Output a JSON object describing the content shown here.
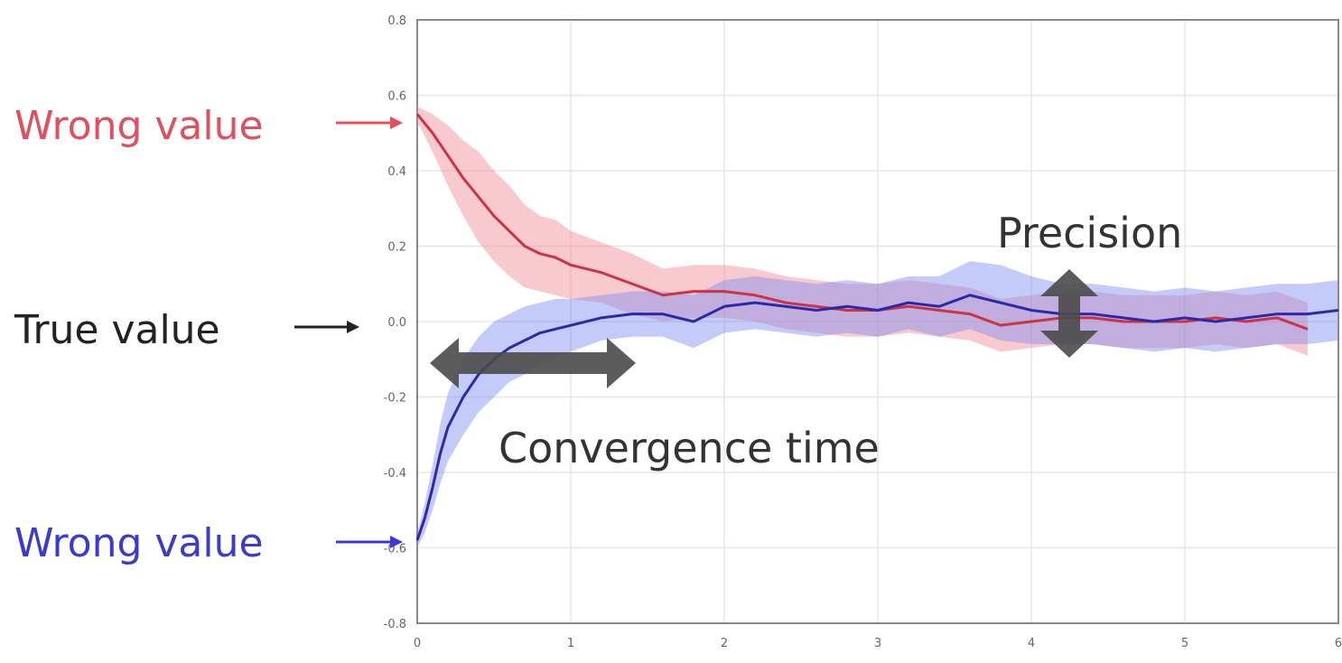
{
  "chart_data": {
    "type": "line",
    "xlim": [
      0,
      6
    ],
    "ylim": [
      -0.8,
      0.8
    ],
    "xticks": [
      "0",
      "1",
      "2",
      "3",
      "4",
      "5",
      "6"
    ],
    "yticks": [
      "-0.8",
      "-0.6",
      "-0.4",
      "-0.2",
      "0.0",
      "0.2",
      "0.4",
      "0.6",
      "0.8"
    ],
    "grid": true,
    "true_value": 0.0,
    "series": [
      {
        "color": "#cc3344",
        "band_color": "#f08a95",
        "x": [
          0,
          0.1,
          0.2,
          0.3,
          0.4,
          0.5,
          0.6,
          0.7,
          0.8,
          0.9,
          1.0,
          1.2,
          1.4,
          1.6,
          1.8,
          2.0,
          2.2,
          2.4,
          2.6,
          2.8,
          3.0,
          3.2,
          3.4,
          3.6,
          3.8,
          4.0,
          4.2,
          4.4,
          4.6,
          4.8,
          5.0,
          5.2,
          5.4,
          5.6,
          5.8
        ],
        "values": [
          0.55,
          0.5,
          0.44,
          0.38,
          0.33,
          0.28,
          0.24,
          0.2,
          0.18,
          0.17,
          0.15,
          0.13,
          0.1,
          0.07,
          0.08,
          0.08,
          0.07,
          0.05,
          0.04,
          0.03,
          0.03,
          0.04,
          0.03,
          0.02,
          -0.01,
          0.0,
          0.01,
          0.01,
          0.0,
          0.0,
          0.0,
          0.01,
          0.0,
          0.01,
          -0.02
        ],
        "band": [
          0.02,
          0.05,
          0.08,
          0.1,
          0.12,
          0.12,
          0.12,
          0.11,
          0.1,
          0.1,
          0.09,
          0.08,
          0.08,
          0.07,
          0.07,
          0.07,
          0.07,
          0.07,
          0.07,
          0.07,
          0.07,
          0.07,
          0.07,
          0.07,
          0.07,
          0.07,
          0.07,
          0.07,
          0.07,
          0.07,
          0.07,
          0.07,
          0.07,
          0.07,
          0.07
        ]
      },
      {
        "color": "#2a2aa8",
        "band_color": "#7f8cf2",
        "x": [
          0,
          0.05,
          0.1,
          0.15,
          0.2,
          0.3,
          0.4,
          0.5,
          0.6,
          0.7,
          0.8,
          0.9,
          1.0,
          1.2,
          1.4,
          1.6,
          1.8,
          2.0,
          2.2,
          2.4,
          2.6,
          2.8,
          3.0,
          3.2,
          3.4,
          3.6,
          3.8,
          4.0,
          4.2,
          4.4,
          4.6,
          4.8,
          5.0,
          5.2,
          5.4,
          5.6,
          5.8,
          6.0
        ],
        "values": [
          -0.58,
          -0.52,
          -0.44,
          -0.35,
          -0.28,
          -0.2,
          -0.14,
          -0.1,
          -0.07,
          -0.05,
          -0.03,
          -0.02,
          -0.01,
          0.01,
          0.02,
          0.02,
          0.0,
          0.04,
          0.05,
          0.04,
          0.03,
          0.04,
          0.03,
          0.05,
          0.04,
          0.07,
          0.05,
          0.03,
          0.02,
          0.02,
          0.01,
          0.0,
          0.01,
          0.0,
          0.01,
          0.02,
          0.02,
          0.03
        ],
        "band": [
          0.02,
          0.04,
          0.06,
          0.08,
          0.09,
          0.1,
          0.1,
          0.1,
          0.09,
          0.09,
          0.08,
          0.08,
          0.07,
          0.06,
          0.06,
          0.06,
          0.07,
          0.07,
          0.07,
          0.07,
          0.07,
          0.07,
          0.07,
          0.07,
          0.08,
          0.09,
          0.1,
          0.09,
          0.08,
          0.08,
          0.08,
          0.08,
          0.08,
          0.08,
          0.08,
          0.08,
          0.08,
          0.08
        ]
      }
    ],
    "callouts": {
      "wrong_top": "Wrong value",
      "true": "True value",
      "wrong_bottom": "Wrong value"
    },
    "annotations": {
      "precision": "Precision",
      "convergence": "Convergence time"
    }
  },
  "colors": {
    "wrong_top": "#e0505e",
    "true": "#222222",
    "wrong_bottom": "#3b3bd0",
    "arrow_shape": "#4a4a4a"
  }
}
